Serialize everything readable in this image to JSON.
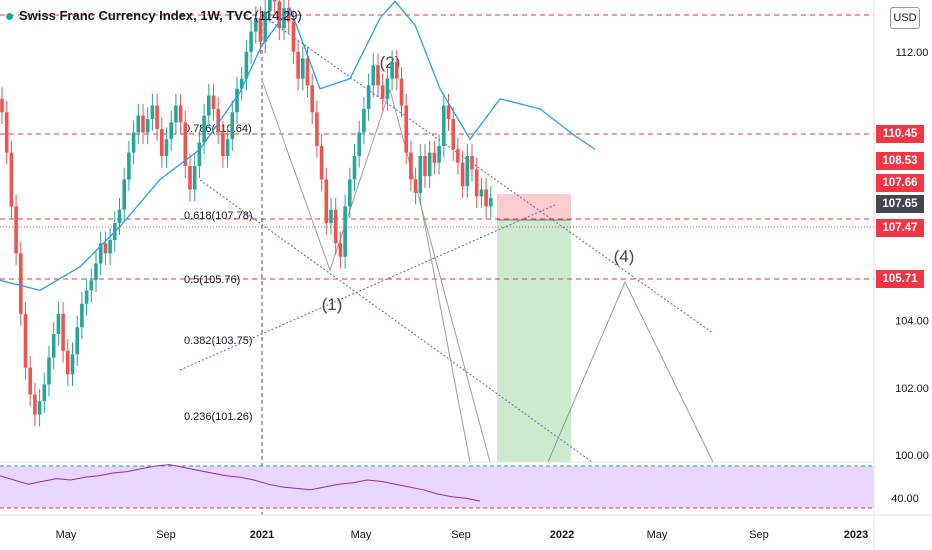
{
  "header": {
    "title": "Swiss Franc Currency Index, 1W, TVC",
    "high_label": "(114.29)",
    "currency_button": "USD"
  },
  "colors": {
    "up": "#26a69a",
    "down": "#ef5350",
    "sma": "#2a9df4",
    "rsi_fill": "#ead7ff",
    "rsi_line": "#9c27b0",
    "hline": "#e53935",
    "tag_red": "#f23645",
    "tag_dark": "#434651"
  },
  "chart_data": {
    "type": "candlestick",
    "title": "Swiss Franc Currency Index, 1W, TVC",
    "y_axis": {
      "min": 100,
      "max": 114.5,
      "ticks": [
        "100.00",
        "102.00",
        "104.00",
        "112.00"
      ]
    },
    "x_axis": {
      "ticks": [
        "May",
        "Sep",
        "2021",
        "May",
        "Sep",
        "2022",
        "May",
        "Sep",
        "2023"
      ]
    },
    "horizontal_levels": [
      114.29,
      110.45,
      107.65,
      105.71
    ],
    "price_tags": [
      {
        "value": "110.45",
        "color": "red"
      },
      {
        "value": "108.53",
        "color": "red"
      },
      {
        "value": "107.66",
        "color": "red"
      },
      {
        "value": "107.65",
        "color": "dark"
      },
      {
        "value": "107.47",
        "color": "red"
      },
      {
        "value": "105.71",
        "color": "red"
      }
    ],
    "fibonacci": [
      {
        "ratio": "0.786",
        "label": "0.786(110.64)",
        "value": 110.64
      },
      {
        "ratio": "0.618",
        "label": "0.618(107.78)",
        "value": 107.78
      },
      {
        "ratio": "0.5",
        "label": "0.5(105.76)",
        "value": 105.76
      },
      {
        "ratio": "0.382",
        "label": "0.382(103.75)",
        "value": 103.75
      },
      {
        "ratio": "0.236",
        "label": "0.236(101.26)",
        "value": 101.26
      }
    ],
    "wave_labels": [
      "(1)",
      "(2)",
      "(4)"
    ],
    "candles_closes": [
      110.2,
      109.0,
      107.4,
      106.0,
      104.2,
      102.6,
      101.8,
      101.2,
      101.6,
      102.1,
      102.9,
      103.6,
      104.2,
      103.1,
      102.4,
      103.0,
      103.8,
      104.5,
      104.9,
      105.2,
      105.7,
      106.3,
      106.0,
      106.4,
      106.9,
      107.3,
      108.2,
      109.0,
      109.6,
      110.1,
      109.6,
      110.0,
      110.4,
      109.7,
      108.9,
      109.4,
      109.9,
      110.4,
      109.9,
      108.6,
      107.9,
      108.6,
      109.3,
      110.1,
      110.7,
      110.3,
      109.6,
      108.9,
      109.4,
      110.2,
      110.9,
      111.2,
      112.0,
      112.6,
      113.0,
      112.3,
      113.2,
      114.0,
      113.5,
      112.7,
      113.3,
      112.9,
      112.0,
      111.2,
      111.8,
      111.0,
      110.2,
      109.2,
      108.2,
      106.9,
      107.3,
      106.3,
      105.9,
      107.4,
      108.2,
      108.9,
      109.6,
      110.3,
      111.0,
      111.6,
      111.0,
      110.6,
      111.2,
      111.7,
      111.2,
      110.4,
      109.0,
      108.2,
      107.8,
      108.9,
      108.3,
      109.0,
      108.7,
      109.2,
      110.4,
      110.0,
      109.1,
      108.7,
      108.0,
      108.9,
      108.5,
      107.7,
      107.9,
      107.4,
      107.65
    ],
    "sma_points": [
      [
        0,
        105.2
      ],
      [
        40,
        104.9
      ],
      [
        80,
        105.6
      ],
      [
        120,
        106.8
      ],
      [
        160,
        108.2
      ],
      [
        200,
        109.1
      ],
      [
        240,
        110.8
      ],
      [
        262,
        112.2
      ],
      [
        290,
        113.3
      ],
      [
        320,
        110.9
      ],
      [
        350,
        111.2
      ],
      [
        380,
        113.0
      ],
      [
        395,
        113.5
      ],
      [
        415,
        112.8
      ],
      [
        440,
        110.9
      ],
      [
        470,
        109.4
      ],
      [
        500,
        110.6
      ],
      [
        540,
        110.3
      ],
      [
        575,
        109.5
      ],
      [
        595,
        109.1
      ]
    ],
    "rsi": {
      "level": "40.00",
      "values": [
        58,
        55,
        52,
        54,
        56,
        55,
        57,
        58,
        60,
        61,
        63,
        65,
        66,
        64,
        62,
        60,
        58,
        57,
        55,
        52,
        50,
        49,
        48,
        50,
        52,
        53,
        55,
        54,
        52,
        50,
        48,
        45,
        43,
        42,
        40
      ]
    }
  }
}
